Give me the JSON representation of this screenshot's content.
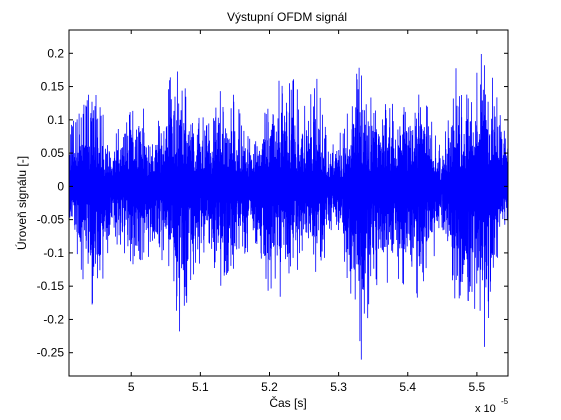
{
  "chart_data": {
    "type": "line",
    "title": "Výstupní OFDM signál",
    "xlabel": "Čas [s]",
    "ylabel": "Úroveň signálu [-]",
    "x_multiplier_label": "x 10",
    "x_multiplier_exponent": "-5",
    "xlim": [
      4.91,
      5.545
    ],
    "ylim": [
      -0.285,
      0.235
    ],
    "x_ticks": [
      5.0,
      5.1,
      5.2,
      5.3,
      5.4,
      5.5
    ],
    "x_tick_labels": [
      "5",
      "5.1",
      "5.2",
      "5.3",
      "5.4",
      "5.5"
    ],
    "y_ticks": [
      0.2,
      0.15,
      0.1,
      0.05,
      0,
      -0.05,
      -0.1,
      -0.15,
      -0.2,
      -0.25
    ],
    "y_tick_labels": [
      "0.2",
      "0.15",
      "0.1",
      "0.05",
      "0",
      "-0.05",
      "-0.1",
      "-0.15",
      "-0.2",
      "-0.25"
    ],
    "series": [
      {
        "color": "#0000ff",
        "envelope": {
          "x": [
            4.91,
            4.93,
            4.95,
            4.97,
            4.99,
            5.01,
            5.03,
            5.05,
            5.07,
            5.09,
            5.11,
            5.13,
            5.15,
            5.17,
            5.19,
            5.21,
            5.23,
            5.25,
            5.27,
            5.29,
            5.31,
            5.33,
            5.35,
            5.37,
            5.39,
            5.41,
            5.43,
            5.45,
            5.47,
            5.49,
            5.51,
            5.53,
            5.545
          ],
          "upper": [
            0.1,
            0.13,
            0.16,
            0.06,
            0.12,
            0.15,
            0.08,
            0.15,
            0.2,
            0.13,
            0.1,
            0.16,
            0.14,
            0.08,
            0.1,
            0.17,
            0.18,
            0.12,
            0.17,
            0.07,
            0.1,
            0.19,
            0.13,
            0.15,
            0.12,
            0.17,
            0.12,
            0.05,
            0.2,
            0.13,
            0.22,
            0.15,
            0.06
          ],
          "lower": [
            -0.08,
            -0.14,
            -0.2,
            -0.08,
            -0.1,
            -0.15,
            -0.1,
            -0.12,
            -0.22,
            -0.14,
            -0.09,
            -0.16,
            -0.13,
            -0.1,
            -0.16,
            -0.18,
            -0.16,
            -0.11,
            -0.14,
            -0.08,
            -0.12,
            -0.28,
            -0.15,
            -0.16,
            -0.14,
            -0.18,
            -0.14,
            -0.06,
            -0.19,
            -0.22,
            -0.25,
            -0.14,
            -0.05
          ]
        }
      }
    ]
  }
}
